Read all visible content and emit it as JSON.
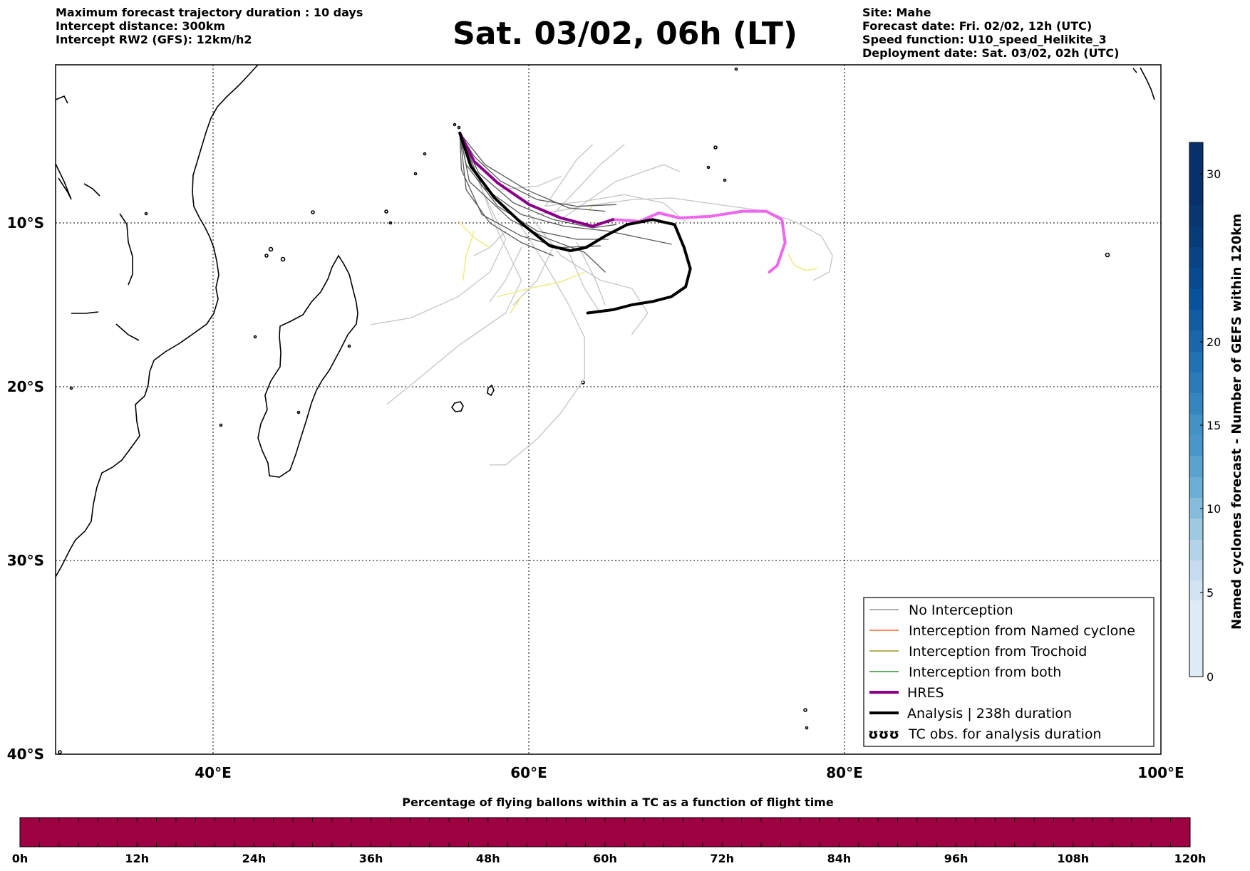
{
  "header_left": [
    "Maximum forecast trajectory duration : 10 days",
    "Intercept distance: 300km",
    "Intercept RW2 (GFS):  12km/h2"
  ],
  "title": "Sat. 03/02, 06h (LT)",
  "header_right": [
    "Site: Mahe",
    "Forecast date: Fri. 02/02, 12h (UTC)",
    "Speed function: U10_speed_Helikite_3",
    "Deployment date: Sat. 03/02, 02h (UTC)"
  ],
  "map": {
    "lat_labels": [
      "10°S",
      "20°S",
      "30°S",
      "40°S"
    ],
    "lon_labels": [
      "40°E",
      "60°E",
      "80°E",
      "100°E"
    ],
    "lon_range": [
      30,
      100
    ],
    "lat_range": [
      -40,
      -0.5
    ]
  },
  "legend": {
    "items": [
      {
        "label": "No Interception",
        "color": "#808080",
        "style": "thin"
      },
      {
        "label": "Interception from Named cyclone",
        "color": "#ff4500",
        "style": "thin"
      },
      {
        "label": "Interception from Trochoid",
        "color": "#808000",
        "style": "thin"
      },
      {
        "label": "Interception from both",
        "color": "#008000",
        "style": "thin"
      },
      {
        "label": "HRES",
        "color": "#8b008b",
        "style": "thick"
      },
      {
        "label": "Analysis | 238h duration",
        "color": "#000000",
        "style": "thick"
      },
      {
        "label": "TC obs. for analysis duration",
        "color": "#000000",
        "style": "symbol",
        "symbol": "ʊʊʊ"
      }
    ]
  },
  "right_colorbar": {
    "label": "Named cyclones forecast - Number of GEFS within 120km",
    "ticks": [
      "0",
      "5",
      "10",
      "15",
      "20",
      "30"
    ],
    "colors": [
      "#deebf7",
      "#c6dbef",
      "#9ecae1",
      "#6baed6",
      "#4292c6",
      "#2171b5",
      "#08519c",
      "#08306b"
    ]
  },
  "bottom_colorbar": {
    "title": "Percentage of flying ballons within a TC as a function of flight time",
    "ticks": [
      "0h",
      "12h",
      "24h",
      "36h",
      "48h",
      "60h",
      "72h",
      "84h",
      "96h",
      "108h",
      "120h"
    ],
    "color": "#9e0142"
  },
  "tracks": {
    "analysis": [
      [
        55.6,
        -4.6
      ],
      [
        56.3,
        -6.6
      ],
      [
        57.8,
        -8.5
      ],
      [
        59.6,
        -10.1
      ],
      [
        61.3,
        -11.4
      ],
      [
        62.6,
        -11.7
      ],
      [
        63.6,
        -11.5
      ],
      [
        64.8,
        -10.8
      ],
      [
        66.2,
        -10.1
      ],
      [
        67.8,
        -9.8
      ],
      [
        69.2,
        -10.1
      ],
      [
        69.8,
        -11.5
      ],
      [
        70.2,
        -12.8
      ],
      [
        69.9,
        -13.9
      ],
      [
        69.0,
        -14.5
      ],
      [
        67.8,
        -14.8
      ],
      [
        66.5,
        -15.0
      ],
      [
        65.3,
        -15.3
      ],
      [
        63.7,
        -15.5
      ]
    ],
    "hres_purple": [
      [
        55.6,
        -4.6
      ],
      [
        56.5,
        -6.3
      ],
      [
        58.0,
        -7.6
      ],
      [
        60.0,
        -8.9
      ],
      [
        62.0,
        -9.7
      ],
      [
        64.0,
        -10.2
      ],
      [
        65.3,
        -9.8
      ]
    ],
    "hres_magenta": [
      [
        65.3,
        -9.8
      ],
      [
        67.0,
        -9.9
      ],
      [
        68.2,
        -9.4
      ],
      [
        69.5,
        -9.7
      ],
      [
        71.5,
        -9.6
      ],
      [
        73.5,
        -9.3
      ],
      [
        75.0,
        -9.3
      ],
      [
        76.0,
        -9.8
      ],
      [
        76.2,
        -11.2
      ],
      [
        75.7,
        -12.6
      ],
      [
        75.2,
        -13.0
      ]
    ],
    "ensemble_dark": [
      [
        [
          55.6,
          -4.6
        ],
        [
          56.0,
          -6.5
        ],
        [
          58.0,
          -9.0
        ],
        [
          60.5,
          -10.5
        ],
        [
          63.0,
          -11.0
        ],
        [
          65.0,
          -11.0
        ]
      ],
      [
        [
          55.6,
          -4.6
        ],
        [
          56.8,
          -7.0
        ],
        [
          59.0,
          -8.8
        ],
        [
          61.5,
          -9.8
        ],
        [
          64.0,
          -10.3
        ],
        [
          65.5,
          -10.1
        ]
      ],
      [
        [
          55.6,
          -4.6
        ],
        [
          55.7,
          -6.8
        ],
        [
          57.0,
          -9.5
        ],
        [
          59.5,
          -10.8
        ],
        [
          62.0,
          -11.5
        ],
        [
          64.5,
          -11.4
        ]
      ],
      [
        [
          55.6,
          -4.6
        ],
        [
          57.2,
          -6.5
        ],
        [
          59.8,
          -8.0
        ],
        [
          62.5,
          -9.1
        ],
        [
          64.8,
          -9.3
        ]
      ],
      [
        [
          55.6,
          -4.6
        ],
        [
          56.2,
          -7.5
        ],
        [
          58.8,
          -9.8
        ],
        [
          61.0,
          -10.9
        ],
        [
          63.5,
          -11.8
        ],
        [
          64.8,
          -13.0
        ]
      ],
      [
        [
          55.6,
          -4.6
        ],
        [
          57.0,
          -7.8
        ],
        [
          59.5,
          -9.5
        ],
        [
          62.2,
          -10.2
        ],
        [
          65.0,
          -10.5
        ],
        [
          67.5,
          -11.0
        ],
        [
          69.0,
          -11.3
        ]
      ],
      [
        [
          55.6,
          -4.6
        ],
        [
          56.5,
          -6.0
        ],
        [
          58.2,
          -7.5
        ],
        [
          60.5,
          -8.6
        ],
        [
          63.0,
          -9.0
        ],
        [
          65.5,
          -8.9
        ]
      ],
      [
        [
          55.6,
          -4.6
        ],
        [
          56.0,
          -8.0
        ],
        [
          57.5,
          -10.0
        ],
        [
          59.5,
          -11.2
        ],
        [
          61.5,
          -12.0
        ]
      ]
    ],
    "ensemble_light": [
      [
        [
          55.6,
          -4.6
        ],
        [
          57.0,
          -8.0
        ],
        [
          58.5,
          -11.0
        ],
        [
          57.5,
          -13.0
        ],
        [
          55.5,
          -14.5
        ],
        [
          52.5,
          -15.8
        ],
        [
          50.0,
          -16.2
        ]
      ],
      [
        [
          57.0,
          -8.0
        ],
        [
          58.0,
          -10.5
        ],
        [
          59.5,
          -13.5
        ],
        [
          58.5,
          -15.5
        ],
        [
          55.5,
          -17.5
        ],
        [
          53.0,
          -19.5
        ],
        [
          51.0,
          -21.0
        ]
      ],
      [
        [
          59.0,
          -9.5
        ],
        [
          61.0,
          -12.5
        ],
        [
          62.5,
          -15.0
        ],
        [
          63.5,
          -17.0
        ],
        [
          63.5,
          -19.5
        ],
        [
          62.0,
          -21.5
        ],
        [
          60.5,
          -23.0
        ],
        [
          58.5,
          -24.5
        ],
        [
          57.5,
          -24.5
        ]
      ],
      [
        [
          60.0,
          -9.5
        ],
        [
          62.0,
          -12.0
        ],
        [
          64.5,
          -13.5
        ],
        [
          66.5,
          -14.0
        ],
        [
          67.5,
          -15.5
        ],
        [
          66.5,
          -16.8
        ]
      ],
      [
        [
          60.5,
          -9.5
        ],
        [
          63.5,
          -9.0
        ],
        [
          66.5,
          -8.6
        ],
        [
          69.0,
          -8.5
        ],
        [
          72.0,
          -8.9
        ],
        [
          75.0,
          -9.3
        ],
        [
          77.0,
          -10.0
        ],
        [
          78.5,
          -10.8
        ],
        [
          79.2,
          -12.0
        ],
        [
          79.0,
          -13.0
        ],
        [
          78.0,
          -13.5
        ]
      ],
      [
        [
          61.0,
          -9.0
        ],
        [
          63.5,
          -8.7
        ],
        [
          66.0,
          -8.3
        ],
        [
          68.5,
          -8.8
        ],
        [
          70.0,
          -10.0
        ]
      ],
      [
        [
          58.0,
          -8.0
        ],
        [
          60.5,
          -7.8
        ],
        [
          62.0,
          -7.2
        ]
      ],
      [
        [
          61.0,
          -9.0
        ],
        [
          63.0,
          -6.2
        ],
        [
          64.0,
          -5.3
        ]
      ],
      [
        [
          61.5,
          -9.5
        ],
        [
          64.5,
          -6.5
        ],
        [
          66.0,
          -5.3
        ]
      ],
      [
        [
          62.0,
          -9.8
        ],
        [
          65.5,
          -7.5
        ],
        [
          68.5,
          -6.5
        ],
        [
          69.5,
          -6.9
        ]
      ],
      [
        [
          58.5,
          -10.5
        ],
        [
          57.5,
          -11.5
        ],
        [
          56.5,
          -12.0
        ]
      ],
      [
        [
          59.5,
          -11.5
        ],
        [
          58.5,
          -13.5
        ],
        [
          57.5,
          -14.8
        ]
      ],
      [
        [
          61.5,
          -11.5
        ],
        [
          60.5,
          -13.5
        ],
        [
          59.0,
          -15.0
        ]
      ],
      [
        [
          62.5,
          -11.8
        ],
        [
          63.5,
          -14.0
        ],
        [
          64.5,
          -15.5
        ]
      ],
      [
        [
          63.0,
          -11.2
        ],
        [
          64.2,
          -13.5
        ],
        [
          64.8,
          -15.0
        ]
      ]
    ],
    "yellow": [
      [
        [
          56.5,
          -10.5
        ],
        [
          56.0,
          -12.0
        ],
        [
          55.8,
          -13.5
        ]
      ],
      [
        [
          55.5,
          -9.9
        ],
        [
          56.5,
          -10.9
        ],
        [
          57.5,
          -11.5
        ]
      ],
      [
        [
          58.0,
          -14.5
        ],
        [
          60.0,
          -14.0
        ],
        [
          62.0,
          -13.6
        ],
        [
          63.5,
          -13.0
        ]
      ],
      [
        [
          63.8,
          -9.3
        ],
        [
          64.0,
          -8.9
        ]
      ],
      [
        [
          76.4,
          -11.9
        ],
        [
          76.8,
          -12.6
        ],
        [
          77.5,
          -12.9
        ],
        [
          78.2,
          -12.8
        ]
      ],
      [
        [
          58.8,
          -15.5
        ],
        [
          59.5,
          -14.5
        ]
      ]
    ]
  }
}
